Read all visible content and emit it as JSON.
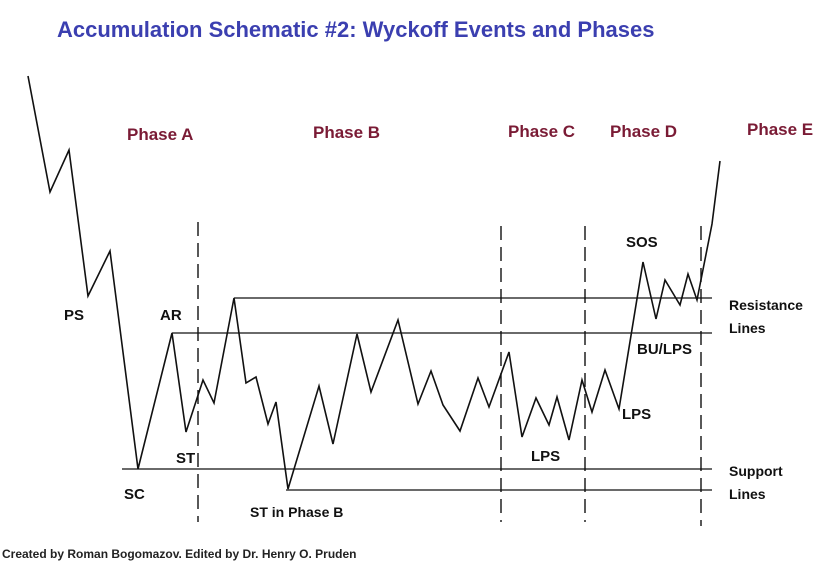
{
  "title": "Accumulation Schematic #2: Wyckoff Events and Phases",
  "phases": {
    "a": "Phase A",
    "b": "Phase B",
    "c": "Phase C",
    "d": "Phase D",
    "e": "Phase E"
  },
  "events": {
    "ps": "PS",
    "sc": "SC",
    "ar": "AR",
    "st": "ST",
    "st_phase_b": "ST in Phase B",
    "lps_c": "LPS",
    "lps_d": "LPS",
    "sos": "SOS",
    "bu_lps": "BU/LPS"
  },
  "side_labels": {
    "resistance_1": "Resistance",
    "resistance_2": "Lines",
    "support_1": "Support",
    "support_2": "Lines"
  },
  "credit": "Created by Roman Bogomazov. Edited by Dr. Henry O. Pruden"
}
